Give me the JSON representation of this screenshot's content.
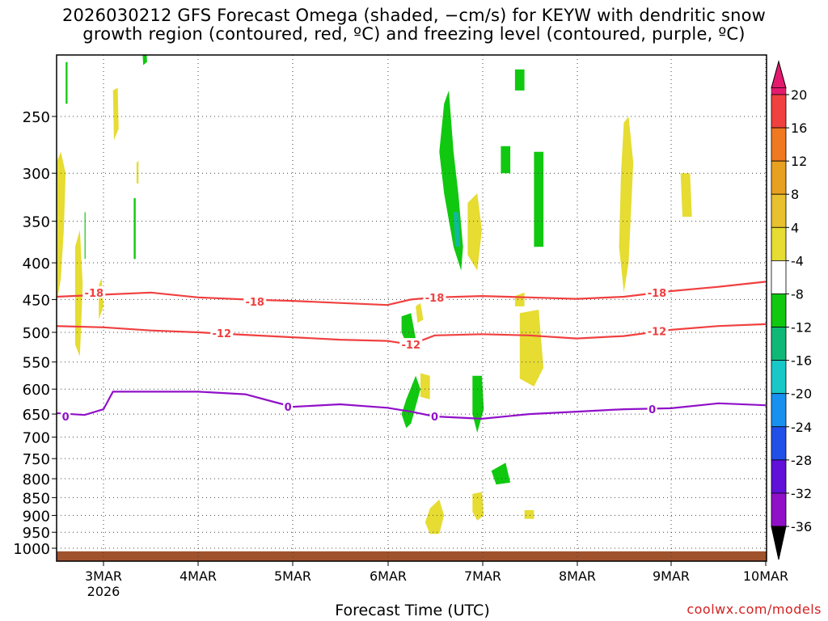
{
  "title": {
    "line1": "2026030212 GFS Forecast Omega (shaded, −cm/s) for KEYW with dendritic snow",
    "line2": "growth region (contoured, red, ºC) and freezing level (contoured, purple, ºC)"
  },
  "xlabel": "Forecast Time (UTC)",
  "credit": "coolwx.com/models",
  "colors": {
    "isotherm_dgz": "#f04040",
    "freezing_level": "#9010c8",
    "ground": "#a0522d",
    "shade_green": "#10c810",
    "shade_yellow": "#e6dc32",
    "shade_teal": "#10b8a0"
  },
  "chart_data": {
    "type": "heatmap",
    "title": "2026030212 GFS Forecast Omega (shaded, −cm/s) for KEYW",
    "xlabel": "Forecast Time (UTC)",
    "ylabel": "",
    "x_ticks": [
      "3MAR",
      "4MAR",
      "5MAR",
      "6MAR",
      "7MAR",
      "8MAR",
      "9MAR",
      "10MAR"
    ],
    "x_tick_sublabel": "2026",
    "y_ticks": [
      250,
      300,
      350,
      400,
      450,
      500,
      550,
      600,
      650,
      700,
      750,
      800,
      850,
      900,
      950,
      1000
    ],
    "y_scale": "log",
    "xlim": [
      "2026-03-02 12Z",
      "2026-03-10 00Z"
    ],
    "ylim": [
      1020,
      200
    ],
    "grid": true,
    "colorbar": {
      "labels": [
        20,
        16,
        12,
        8,
        4,
        -4,
        -8,
        -12,
        -16,
        -20,
        -24,
        -28,
        -32,
        -36
      ],
      "colors": [
        "#e41a6e",
        "#f04040",
        "#f07820",
        "#e8a020",
        "#e8c030",
        "#e6dc32",
        "#ffffff",
        "#10c810",
        "#10b878",
        "#18c8c8",
        "#1890f0",
        "#2050e8",
        "#6010d8",
        "#9010c8",
        "#a0a0a0",
        "#000000"
      ]
    },
    "contours": [
      {
        "label": "-18",
        "color": "#f04040",
        "points": [
          [
            0,
            446
          ],
          [
            0.5,
            443
          ],
          [
            1,
            440
          ],
          [
            1.5,
            447
          ],
          [
            2,
            450
          ],
          [
            2.5,
            452
          ],
          [
            3,
            455
          ],
          [
            3.5,
            458
          ],
          [
            3.75,
            450
          ],
          [
            4,
            447
          ],
          [
            4.5,
            445
          ],
          [
            5,
            447
          ],
          [
            5.5,
            449
          ],
          [
            6,
            446
          ],
          [
            6.5,
            438
          ],
          [
            7,
            432
          ],
          [
            7.5,
            425
          ]
        ]
      },
      {
        "label": "-12",
        "color": "#f04040",
        "points": [
          [
            0,
            490
          ],
          [
            0.5,
            492
          ],
          [
            1,
            497
          ],
          [
            1.5,
            500
          ],
          [
            2,
            504
          ],
          [
            2.5,
            508
          ],
          [
            3,
            512
          ],
          [
            3.5,
            514
          ],
          [
            3.75,
            520
          ],
          [
            4,
            505
          ],
          [
            4.5,
            503
          ],
          [
            5,
            505
          ],
          [
            5.5,
            510
          ],
          [
            6,
            506
          ],
          [
            6.5,
            496
          ],
          [
            7,
            490
          ],
          [
            7.5,
            487
          ]
        ]
      },
      {
        "label": "0",
        "color": "#9010c8",
        "points": [
          [
            0,
            648
          ],
          [
            0.3,
            652
          ],
          [
            0.5,
            640
          ],
          [
            0.6,
            605
          ],
          [
            1,
            605
          ],
          [
            1.5,
            605
          ],
          [
            2,
            610
          ],
          [
            2.3,
            625
          ],
          [
            2.5,
            635
          ],
          [
            3,
            630
          ],
          [
            3.5,
            637
          ],
          [
            3.75,
            645
          ],
          [
            4,
            655
          ],
          [
            4.5,
            660
          ],
          [
            5,
            650
          ],
          [
            5.5,
            645
          ],
          [
            6,
            640
          ],
          [
            6.5,
            638
          ],
          [
            7,
            628
          ],
          [
            7.5,
            632
          ]
        ]
      }
    ],
    "contour_labels": [
      {
        "text": "-18",
        "x": 0.4,
        "p": 440
      },
      {
        "text": "-18",
        "x": 2.1,
        "p": 453
      },
      {
        "text": "-18",
        "x": 4.0,
        "p": 447
      },
      {
        "text": "-18",
        "x": 6.35,
        "p": 440
      },
      {
        "text": "-12",
        "x": 1.75,
        "p": 501
      },
      {
        "text": "-12",
        "x": 3.75,
        "p": 520
      },
      {
        "text": "-12",
        "x": 6.35,
        "p": 498
      },
      {
        "text": "0",
        "x": 0.1,
        "p": 655
      },
      {
        "text": "0",
        "x": 2.45,
        "p": 635
      },
      {
        "text": "0",
        "x": 4.0,
        "p": 655
      },
      {
        "text": "0",
        "x": 6.3,
        "p": 640
      }
    ],
    "shaded_regions": [
      {
        "color": "#e6dc32",
        "poly": [
          [
            0,
            290
          ],
          [
            0.05,
            280
          ],
          [
            0.1,
            300
          ],
          [
            0.08,
            360
          ],
          [
            0.05,
            420
          ],
          [
            0,
            460
          ]
        ]
      },
      {
        "color": "#e6dc32",
        "poly": [
          [
            0.2,
            380
          ],
          [
            0.25,
            360
          ],
          [
            0.28,
            430
          ],
          [
            0.25,
            540
          ],
          [
            0.2,
            520
          ]
        ]
      },
      {
        "color": "#e6dc32",
        "poly": [
          [
            0.45,
            430
          ],
          [
            0.48,
            420
          ],
          [
            0.5,
            460
          ],
          [
            0.45,
            480
          ]
        ]
      },
      {
        "color": "#e6dc32",
        "poly": [
          [
            0.6,
            230
          ],
          [
            0.65,
            228
          ],
          [
            0.66,
            260
          ],
          [
            0.61,
            270
          ]
        ]
      },
      {
        "color": "#e6dc32",
        "poly": [
          [
            0.85,
            290
          ],
          [
            0.87,
            288
          ],
          [
            0.87,
            310
          ],
          [
            0.85,
            310
          ]
        ]
      },
      {
        "color": "#10c810",
        "poly": [
          [
            0.1,
            210
          ],
          [
            0.12,
            210
          ],
          [
            0.12,
            240
          ],
          [
            0.1,
            240
          ]
        ]
      },
      {
        "color": "#10c810",
        "poly": [
          [
            0.9,
            190
          ],
          [
            0.95,
            190
          ],
          [
            0.96,
            210
          ],
          [
            0.92,
            212
          ]
        ]
      },
      {
        "color": "#10c810",
        "poly": [
          [
            0.82,
            325
          ],
          [
            0.84,
            325
          ],
          [
            0.84,
            395
          ],
          [
            0.82,
            395
          ]
        ]
      },
      {
        "color": "#10c810",
        "poly": [
          [
            0.3,
            340
          ],
          [
            0.31,
            340
          ],
          [
            0.31,
            395
          ],
          [
            0.3,
            395
          ]
        ]
      },
      {
        "color": "#10c810",
        "poly": [
          [
            4.1,
            240
          ],
          [
            4.15,
            230
          ],
          [
            4.2,
            280
          ],
          [
            4.25,
            320
          ],
          [
            4.3,
            380
          ],
          [
            4.28,
            410
          ],
          [
            4.2,
            380
          ],
          [
            4.1,
            320
          ],
          [
            4.05,
            280
          ]
        ]
      },
      {
        "color": "#10b8a0",
        "poly": [
          [
            4.2,
            340
          ],
          [
            4.25,
            340
          ],
          [
            4.27,
            380
          ],
          [
            4.22,
            380
          ]
        ]
      },
      {
        "color": "#e6dc32",
        "poly": [
          [
            4.35,
            330
          ],
          [
            4.45,
            320
          ],
          [
            4.5,
            360
          ],
          [
            4.45,
            410
          ],
          [
            4.35,
            390
          ]
        ]
      },
      {
        "color": "#10c810",
        "poly": [
          [
            4.85,
            215
          ],
          [
            4.95,
            215
          ],
          [
            4.95,
            230
          ],
          [
            4.85,
            230
          ]
        ]
      },
      {
        "color": "#10c810",
        "poly": [
          [
            4.7,
            275
          ],
          [
            4.8,
            275
          ],
          [
            4.8,
            300
          ],
          [
            4.7,
            300
          ]
        ]
      },
      {
        "color": "#10c810",
        "poly": [
          [
            5.05,
            280
          ],
          [
            5.15,
            280
          ],
          [
            5.15,
            380
          ],
          [
            5.05,
            380
          ]
        ]
      },
      {
        "color": "#e6dc32",
        "poly": [
          [
            6.0,
            255
          ],
          [
            6.05,
            250
          ],
          [
            6.1,
            290
          ],
          [
            6.05,
            400
          ],
          [
            6.0,
            440
          ],
          [
            5.95,
            380
          ],
          [
            5.97,
            300
          ]
        ]
      },
      {
        "color": "#e6dc32",
        "poly": [
          [
            6.6,
            300
          ],
          [
            6.7,
            300
          ],
          [
            6.72,
            345
          ],
          [
            6.62,
            345
          ]
        ]
      },
      {
        "color": "#10c810",
        "poly": [
          [
            3.65,
            475
          ],
          [
            3.75,
            470
          ],
          [
            3.8,
            510
          ],
          [
            3.72,
            525
          ],
          [
            3.65,
            500
          ]
        ]
      },
      {
        "color": "#e6dc32",
        "poly": [
          [
            3.8,
            460
          ],
          [
            3.85,
            455
          ],
          [
            3.88,
            480
          ],
          [
            3.82,
            485
          ]
        ]
      },
      {
        "color": "#e6dc32",
        "poly": [
          [
            4.9,
            470
          ],
          [
            5.1,
            465
          ],
          [
            5.15,
            560
          ],
          [
            5.05,
            595
          ],
          [
            4.9,
            580
          ]
        ]
      },
      {
        "color": "#e6dc32",
        "poly": [
          [
            4.85,
            445
          ],
          [
            4.95,
            440
          ],
          [
            4.95,
            460
          ],
          [
            4.85,
            460
          ]
        ]
      },
      {
        "color": "#10c810",
        "poly": [
          [
            3.7,
            620
          ],
          [
            3.8,
            575
          ],
          [
            3.85,
            600
          ],
          [
            3.75,
            670
          ],
          [
            3.7,
            680
          ],
          [
            3.65,
            650
          ]
        ]
      },
      {
        "color": "#10c810",
        "poly": [
          [
            4.4,
            575
          ],
          [
            4.5,
            575
          ],
          [
            4.52,
            640
          ],
          [
            4.45,
            690
          ],
          [
            4.4,
            650
          ]
        ]
      },
      {
        "color": "#e6dc32",
        "poly": [
          [
            3.85,
            570
          ],
          [
            3.95,
            575
          ],
          [
            3.95,
            620
          ],
          [
            3.85,
            615
          ]
        ]
      },
      {
        "color": "#e6dc32",
        "poly": [
          [
            3.95,
            880
          ],
          [
            4.05,
            855
          ],
          [
            4.1,
            900
          ],
          [
            4.05,
            955
          ],
          [
            3.95,
            955
          ],
          [
            3.9,
            920
          ]
        ]
      },
      {
        "color": "#e6dc32",
        "poly": [
          [
            4.4,
            840
          ],
          [
            4.5,
            835
          ],
          [
            4.52,
            900
          ],
          [
            4.45,
            915
          ],
          [
            4.4,
            890
          ]
        ]
      },
      {
        "color": "#10c810",
        "poly": [
          [
            4.6,
            780
          ],
          [
            4.75,
            760
          ],
          [
            4.8,
            810
          ],
          [
            4.65,
            815
          ]
        ]
      },
      {
        "color": "#e6dc32",
        "poly": [
          [
            4.95,
            885
          ],
          [
            5.05,
            885
          ],
          [
            5.05,
            910
          ],
          [
            4.95,
            910
          ]
        ]
      }
    ]
  }
}
